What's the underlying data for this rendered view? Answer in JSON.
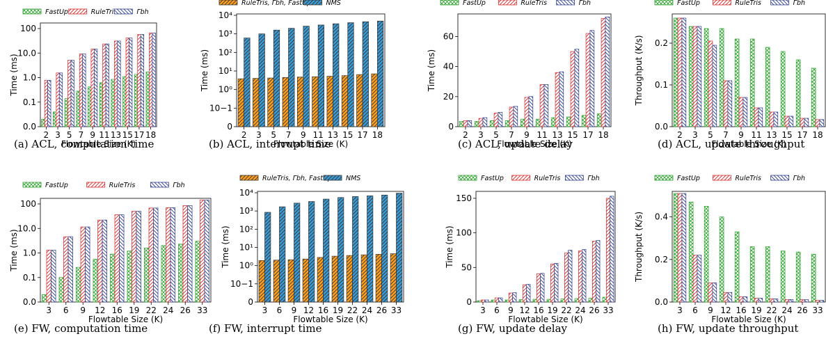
{
  "colors": {
    "FastUp": "#2ca02c",
    "RuleTris": "#d62728",
    "Gamma": "#2b3a8a",
    "RuleTrisGammaFastUp": "#ff9f1c",
    "NMS": "#3a9bd5"
  },
  "chart_data": [
    {
      "id": "a",
      "type": "bar",
      "scale": "log-acl",
      "caption": "(a) ACL, computation time",
      "xlabel": "Flowtable Size (K)",
      "ylabel": "Time (ms)",
      "categories": [
        "2",
        "3",
        "5",
        "7",
        "9",
        "11",
        "13",
        "15",
        "17",
        "18"
      ],
      "yticks": [
        "0.0",
        "0.1",
        "1.0",
        "10.0",
        "100"
      ],
      "legend": [
        "FastUp",
        "RuleTris",
        "Γbh"
      ],
      "series": [
        {
          "name": "FastUp",
          "color": "#2ca02c",
          "pattern": "cross",
          "values": [
            0.03,
            0.06,
            0.14,
            0.28,
            0.42,
            0.62,
            0.85,
            1.1,
            1.35,
            1.7
          ]
        },
        {
          "name": "RuleTris",
          "color": "#d62728",
          "pattern": "fwd",
          "values": [
            0.78,
            1.55,
            5.1,
            9.2,
            14.5,
            23.5,
            31,
            41,
            57,
            66
          ]
        },
        {
          "name": "Γbh",
          "color": "#2b3a8a",
          "pattern": "back",
          "values": [
            0.78,
            1.55,
            5.1,
            9.2,
            14.5,
            23.5,
            31,
            41,
            57,
            66
          ]
        }
      ]
    },
    {
      "id": "b",
      "type": "bar",
      "scale": "symlog",
      "caption": "(b) ACL, interrupt time",
      "xlabel": "Flowtable Size (K)",
      "ylabel": "Time (ms)",
      "categories": [
        "2",
        "3",
        "5",
        "7",
        "9",
        "11",
        "13",
        "15",
        "17",
        "18"
      ],
      "yticks": [
        "0",
        "10−1",
        "10⁰",
        "10¹",
        "10²",
        "10³",
        "10⁴"
      ],
      "legend": [
        "RuleTris, Γbh, FastUp",
        "NMS"
      ],
      "series": [
        {
          "name": "RuleTris, Γbh, FastUp",
          "color": "#ff9f1c",
          "pattern": "fwd",
          "values": [
            3.8,
            4.0,
            4.2,
            4.5,
            4.7,
            4.9,
            5.2,
            5.6,
            6.4,
            7.0
          ]
        },
        {
          "name": "NMS",
          "color": "#3a9bd5",
          "pattern": "fwd",
          "values": [
            600,
            1000,
            1600,
            2000,
            2600,
            3000,
            3500,
            4000,
            4500,
            4900
          ]
        }
      ]
    },
    {
      "id": "c",
      "type": "bar",
      "scale": "linear",
      "caption": "(c) ACL, update delay",
      "xlabel": "Flowtable Size (K)",
      "ylabel": "Time (ms)",
      "categories": [
        "2",
        "3",
        "5",
        "7",
        "9",
        "11",
        "13",
        "15",
        "17",
        "18"
      ],
      "ylim": [
        0,
        75
      ],
      "yticks": [
        "0",
        "20",
        "40",
        "60"
      ],
      "ytickvals": [
        0,
        20,
        40,
        60
      ],
      "legend": [
        "FastUp",
        "RuleTris",
        "Γbh"
      ],
      "series": [
        {
          "name": "FastUp",
          "color": "#2ca02c",
          "pattern": "cross",
          "values": [
            3.5,
            3.5,
            4,
            4,
            5,
            5,
            6,
            6.5,
            7.5,
            8.5
          ]
        },
        {
          "name": "RuleTris",
          "color": "#d62728",
          "pattern": "fwd",
          "values": [
            4,
            5.5,
            9,
            13,
            19.5,
            28,
            36,
            50,
            62,
            72
          ]
        },
        {
          "name": "Γbh",
          "color": "#2b3a8a",
          "pattern": "back",
          "values": [
            4,
            6,
            9.5,
            13.5,
            20,
            28,
            36.5,
            51.5,
            64,
            73
          ]
        }
      ]
    },
    {
      "id": "d",
      "type": "bar",
      "scale": "linear",
      "caption": "(d) ACL, update throughput",
      "xlabel": "Flowtable Size (K)",
      "ylabel": "Throughput (K/s)",
      "categories": [
        "2",
        "3",
        "5",
        "7",
        "9",
        "11",
        "13",
        "15",
        "17",
        "18"
      ],
      "ylim": [
        0,
        0.27
      ],
      "yticks": [
        "0.0",
        "0.1",
        "0.2"
      ],
      "ytickvals": [
        0,
        0.1,
        0.2
      ],
      "legend": [
        "FastUp",
        "RuleTris",
        "Γbh"
      ],
      "series": [
        {
          "name": "FastUp",
          "color": "#2ca02c",
          "pattern": "cross",
          "values": [
            0.26,
            0.24,
            0.235,
            0.235,
            0.21,
            0.21,
            0.19,
            0.18,
            0.16,
            0.14
          ]
        },
        {
          "name": "RuleTris",
          "color": "#d62728",
          "pattern": "fwd",
          "values": [
            0.26,
            0.24,
            0.205,
            0.11,
            0.07,
            0.045,
            0.035,
            0.025,
            0.02,
            0.017
          ]
        },
        {
          "name": "Γbh",
          "color": "#2b3a8a",
          "pattern": "back",
          "values": [
            0.26,
            0.24,
            0.195,
            0.11,
            0.07,
            0.045,
            0.035,
            0.025,
            0.02,
            0.017
          ]
        }
      ]
    },
    {
      "id": "e",
      "type": "bar",
      "scale": "log-fw",
      "caption": "(e) FW, computation time",
      "xlabel": "Flowtable Size (K)",
      "ylabel": "Time (ms)",
      "categories": [
        "3",
        "6",
        "9",
        "12",
        "16",
        "19",
        "22",
        "24",
        "26",
        "33"
      ],
      "yticks": [
        "0.0",
        "0.1",
        "1.0",
        "10.0",
        "100"
      ],
      "legend": [
        "FastUp",
        "RuleTris",
        "Γbh"
      ],
      "series": [
        {
          "name": "FastUp",
          "color": "#2ca02c",
          "pattern": "cross",
          "values": [
            0.03,
            0.1,
            0.26,
            0.55,
            0.9,
            1.2,
            1.6,
            2.0,
            2.3,
            3.0
          ]
        },
        {
          "name": "RuleTris",
          "color": "#d62728",
          "pattern": "fwd",
          "values": [
            1.3,
            4.6,
            11.5,
            22,
            36,
            50,
            68,
            70,
            85,
            145
          ]
        },
        {
          "name": "Γbh",
          "color": "#2b3a8a",
          "pattern": "back",
          "values": [
            1.3,
            4.6,
            11.5,
            22,
            36,
            50,
            68,
            70,
            85,
            145
          ]
        }
      ]
    },
    {
      "id": "f",
      "type": "bar",
      "scale": "symlog",
      "caption": "(f) FW, interrupt time",
      "xlabel": "Flowtable Size (K)",
      "ylabel": "Time (ms)",
      "categories": [
        "3",
        "6",
        "9",
        "12",
        "16",
        "19",
        "22",
        "24",
        "26",
        "33"
      ],
      "yticks": [
        "0",
        "10−1",
        "10⁰",
        "10¹",
        "10²",
        "10³",
        "10⁴"
      ],
      "legend": [
        "RuleTris, Γbh, FastUp",
        "NMS"
      ],
      "series": [
        {
          "name": "RuleTris, Γbh, FastUp",
          "color": "#ff9f1c",
          "pattern": "fwd",
          "values": [
            1.9,
            2.0,
            2.1,
            2.3,
            2.8,
            3.3,
            3.6,
            3.9,
            4.2,
            4.5
          ]
        },
        {
          "name": "NMS",
          "color": "#3a9bd5",
          "pattern": "fwd",
          "values": [
            850,
            1700,
            2700,
            3300,
            4500,
            5500,
            6200,
            6800,
            7500,
            9500
          ]
        }
      ]
    },
    {
      "id": "g",
      "type": "bar",
      "scale": "linear",
      "caption": "(g) FW, update delay",
      "xlabel": "Flowtable Size (K)",
      "ylabel": "Time (ms)",
      "categories": [
        "3",
        "6",
        "9",
        "12",
        "16",
        "19",
        "22",
        "24",
        "26",
        "33"
      ],
      "ylim": [
        0,
        160
      ],
      "yticks": [
        "0",
        "50",
        "100",
        "150"
      ],
      "ytickvals": [
        0,
        50,
        100,
        150
      ],
      "legend": [
        "FastUp",
        "RuleTris",
        "Γbh"
      ],
      "series": [
        {
          "name": "FastUp",
          "color": "#2ca02c",
          "pattern": "cross",
          "values": [
            2,
            3,
            3,
            3.5,
            4,
            4,
            4.5,
            5,
            5.5,
            7
          ]
        },
        {
          "name": "RuleTris",
          "color": "#d62728",
          "pattern": "fwd",
          "values": [
            3,
            6,
            13,
            25,
            41,
            55,
            71,
            74,
            88,
            150
          ]
        },
        {
          "name": "Γbh",
          "color": "#2b3a8a",
          "pattern": "back",
          "values": [
            3,
            6,
            13.5,
            25.5,
            41.5,
            56,
            75,
            76,
            89,
            153
          ]
        }
      ]
    },
    {
      "id": "h",
      "type": "bar",
      "scale": "linear",
      "caption": "(h) FW, update throughput",
      "xlabel": "Flowtable Size (K)",
      "ylabel": "Throughput (K/s)",
      "categories": [
        "3",
        "6",
        "9",
        "12",
        "16",
        "19",
        "22",
        "24",
        "26",
        "33"
      ],
      "ylim": [
        0,
        0.52
      ],
      "yticks": [
        "0.0",
        "0.2",
        "0.4"
      ],
      "ytickvals": [
        0,
        0.2,
        0.4
      ],
      "legend": [
        "FastUp",
        "RuleTris",
        "Γbh"
      ],
      "series": [
        {
          "name": "FastUp",
          "color": "#2ca02c",
          "pattern": "cross",
          "values": [
            0.51,
            0.47,
            0.45,
            0.4,
            0.33,
            0.26,
            0.26,
            0.24,
            0.235,
            0.225
          ]
        },
        {
          "name": "RuleTris",
          "color": "#d62728",
          "pattern": "fwd",
          "values": [
            0.51,
            0.22,
            0.09,
            0.045,
            0.025,
            0.018,
            0.015,
            0.012,
            0.011,
            0.008
          ]
        },
        {
          "name": "Γbh",
          "color": "#2b3a8a",
          "pattern": "back",
          "values": [
            0.51,
            0.22,
            0.09,
            0.045,
            0.025,
            0.018,
            0.015,
            0.012,
            0.011,
            0.008
          ]
        }
      ]
    }
  ]
}
